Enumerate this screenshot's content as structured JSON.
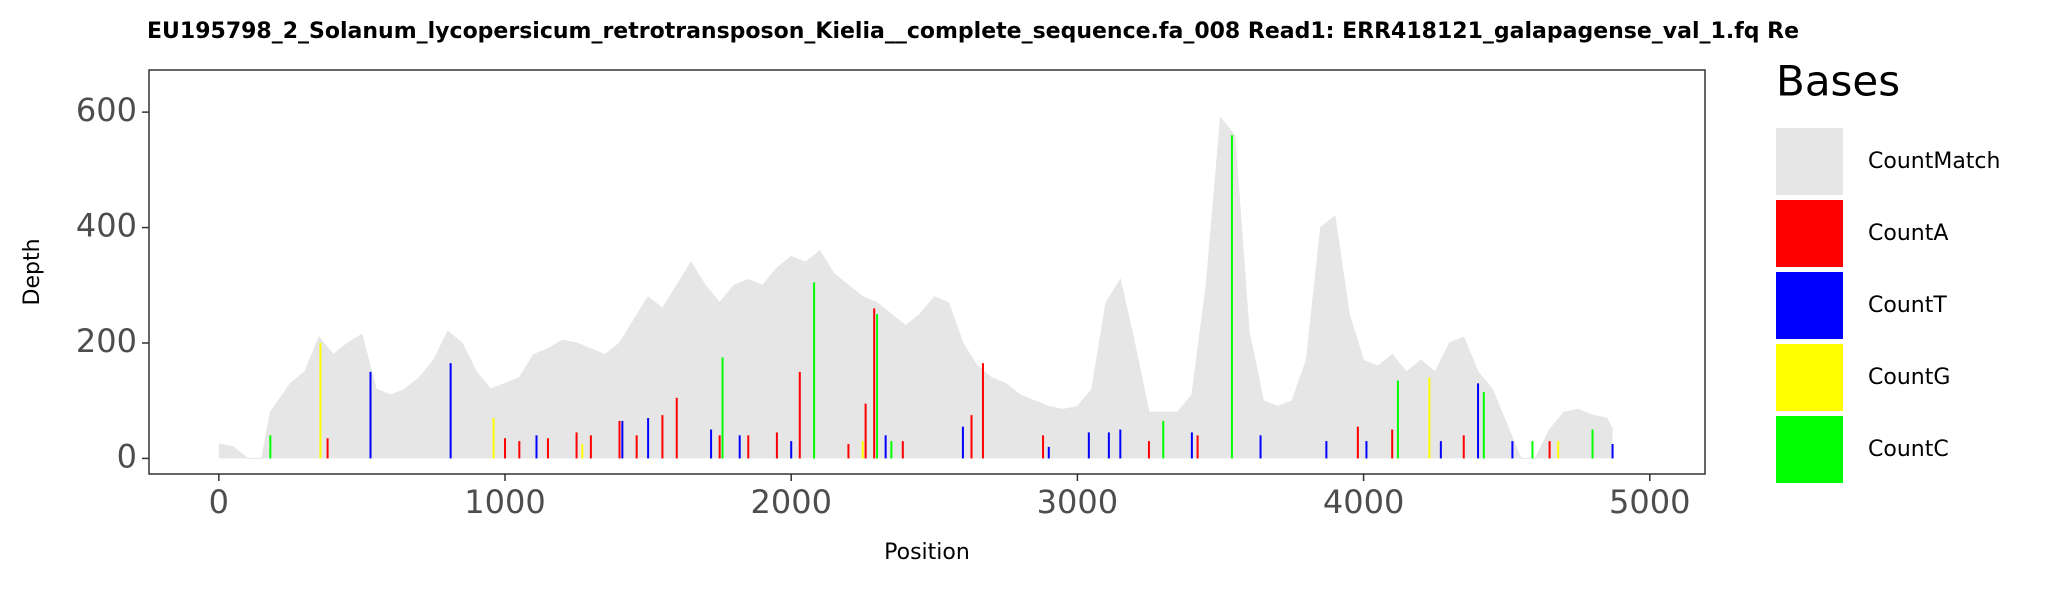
{
  "chart_data": {
    "type": "area",
    "title": "EU195798_2_Solanum_lycopersicum_retrotransposon_Kielia__complete_sequence.fa_008   Read1: ERR418121_galapagense_val_1.fq   Re",
    "x_label": "Position",
    "y_label": "Depth",
    "legend_title": "Bases",
    "xlim": [
      -244,
      5193
    ],
    "ylim": [
      -27,
      673
    ],
    "xticks": [
      0,
      1000,
      2000,
      3000,
      4000,
      5000
    ],
    "yticks": [
      0,
      200,
      400,
      600
    ],
    "series": [
      {
        "name": "CountMatch",
        "type": "area",
        "color": "#e6e6e6",
        "x": [
          0,
          50,
          100,
          150,
          180,
          250,
          300,
          350,
          400,
          450,
          500,
          550,
          600,
          650,
          700,
          750,
          800,
          850,
          900,
          950,
          1000,
          1050,
          1100,
          1150,
          1200,
          1250,
          1300,
          1350,
          1400,
          1450,
          1500,
          1550,
          1600,
          1650,
          1700,
          1750,
          1800,
          1850,
          1900,
          1950,
          2000,
          2050,
          2100,
          2150,
          2200,
          2250,
          2300,
          2350,
          2400,
          2450,
          2500,
          2550,
          2600,
          2650,
          2700,
          2750,
          2800,
          2850,
          2900,
          2950,
          3000,
          3050,
          3100,
          3150,
          3200,
          3250,
          3300,
          3350,
          3400,
          3450,
          3500,
          3550,
          3600,
          3650,
          3700,
          3750,
          3800,
          3850,
          3900,
          3950,
          4000,
          4050,
          4100,
          4150,
          4200,
          4250,
          4300,
          4350,
          4400,
          4450,
          4500,
          4550,
          4600,
          4650,
          4700,
          4750,
          4800,
          4850,
          4870
        ],
        "values": [
          25,
          20,
          0,
          0,
          80,
          130,
          150,
          210,
          180,
          200,
          215,
          120,
          110,
          120,
          140,
          170,
          220,
          200,
          150,
          120,
          130,
          140,
          180,
          190,
          205,
          200,
          190,
          180,
          200,
          240,
          280,
          260,
          300,
          340,
          300,
          270,
          300,
          310,
          300,
          330,
          350,
          340,
          360,
          320,
          300,
          280,
          270,
          250,
          230,
          250,
          280,
          270,
          200,
          160,
          140,
          130,
          110,
          100,
          90,
          85,
          90,
          120,
          270,
          310,
          200,
          80,
          80,
          80,
          110,
          300,
          590,
          560,
          220,
          100,
          90,
          100,
          170,
          400,
          420,
          250,
          170,
          160,
          180,
          150,
          170,
          150,
          200,
          210,
          150,
          120,
          60,
          0,
          0,
          50,
          80,
          85,
          75,
          70,
          50
        ]
      },
      {
        "name": "CountA",
        "type": "bar",
        "color": "#ff0000",
        "x": [
          380,
          1000,
          1050,
          1150,
          1250,
          1300,
          1400,
          1460,
          1550,
          1600,
          1750,
          1850,
          1950,
          2030,
          2200,
          2260,
          2290,
          2390,
          2630,
          2670,
          2880,
          3250,
          3420,
          3980,
          4100,
          4350,
          4650
        ],
        "values": [
          35,
          35,
          30,
          35,
          45,
          40,
          65,
          40,
          75,
          105,
          40,
          40,
          45,
          150,
          25,
          95,
          260,
          30,
          75,
          165,
          40,
          30,
          40,
          55,
          50,
          40,
          30
        ]
      },
      {
        "name": "CountT",
        "type": "bar",
        "color": "#0000ff",
        "x": [
          530,
          810,
          1110,
          1410,
          1500,
          1720,
          1820,
          2000,
          2330,
          2600,
          2900,
          3040,
          3110,
          3150,
          3400,
          3640,
          3870,
          4010,
          4270,
          4400,
          4520,
          4870
        ],
        "values": [
          150,
          165,
          40,
          65,
          70,
          50,
          40,
          30,
          40,
          55,
          20,
          45,
          45,
          50,
          45,
          40,
          30,
          30,
          30,
          130,
          30,
          25
        ]
      },
      {
        "name": "CountG",
        "type": "bar",
        "color": "#ffff00",
        "x": [
          355,
          960,
          1270,
          2250,
          4230,
          4680
        ],
        "values": [
          200,
          70,
          25,
          30,
          140,
          30
        ]
      },
      {
        "name": "CountC",
        "type": "bar",
        "color": "#00ff00",
        "x": [
          180,
          1760,
          2080,
          2300,
          2350,
          3300,
          3540,
          4120,
          4420,
          4590,
          4800
        ],
        "values": [
          40,
          175,
          305,
          250,
          30,
          65,
          560,
          135,
          115,
          30,
          50
        ]
      }
    ]
  }
}
